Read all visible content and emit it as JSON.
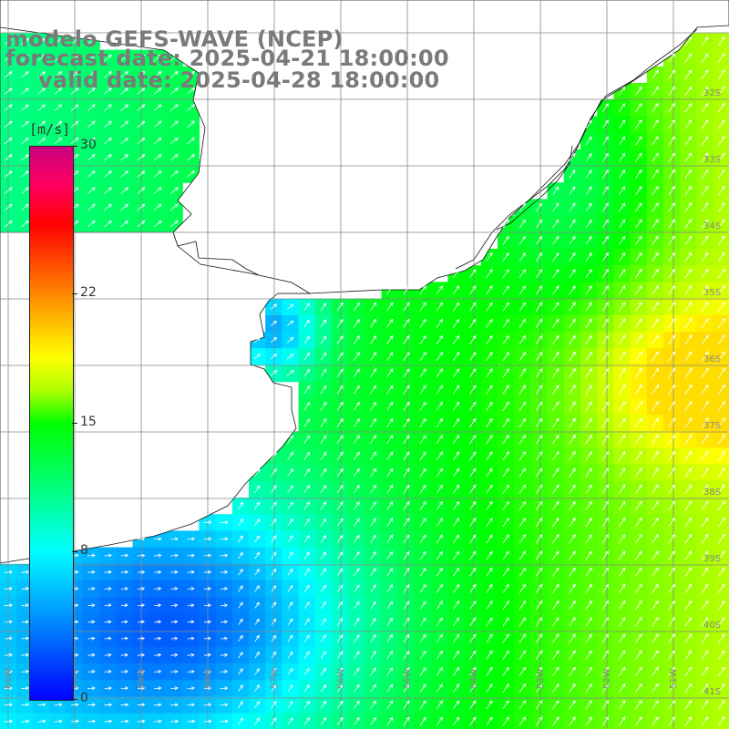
{
  "title": {
    "line1": "modelo GEFS-WAVE (NCEP)",
    "line2": "forecast date: 2025-04-21 18:00:00",
    "line3": "valid date: 2025-04-28 18:00:00"
  },
  "colorbar": {
    "units": "[m/s]",
    "labels": [
      "30",
      "22",
      "15",
      "8",
      "0"
    ],
    "values": [
      30,
      22,
      15,
      8,
      0
    ],
    "min": 0,
    "max": 30,
    "colors": [
      "#0000ff",
      "#0080ff",
      "#00ffff",
      "#00ff80",
      "#00ff00",
      "#ffff00",
      "#ff8000",
      "#ff0000",
      "#c80080"
    ]
  },
  "map": {
    "land_color": "#ffffff",
    "grid_color": "#888888",
    "arrow_color": "#ffffff",
    "lat_labels": [
      "32S",
      "33S",
      "34S",
      "35S",
      "36S",
      "37S",
      "38S",
      "39S",
      "40S",
      "41S"
    ],
    "lon_labels": [
      "61W",
      "60W",
      "59W",
      "58W",
      "57W",
      "56W",
      "55W",
      "54W",
      "53W",
      "52W",
      "51W"
    ]
  }
}
